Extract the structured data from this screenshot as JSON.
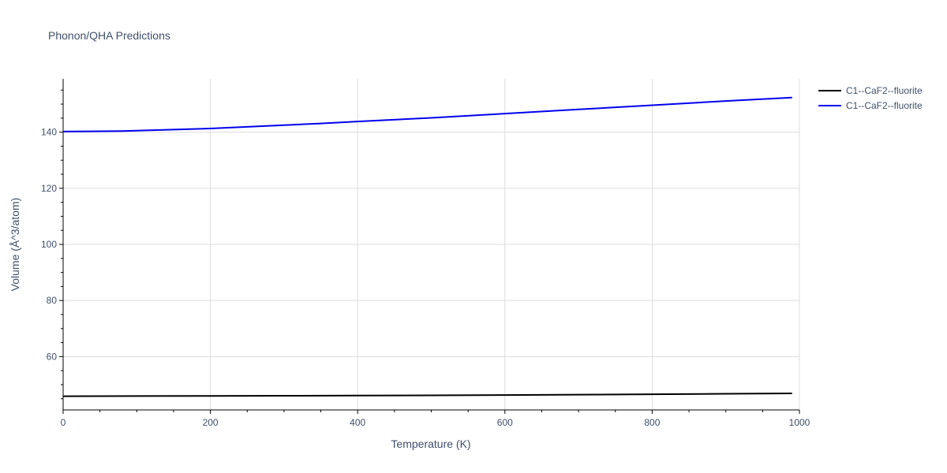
{
  "chart_data": {
    "type": "line",
    "title": "Phonon/QHA Predictions",
    "xlabel": "Temperature (K)",
    "ylabel": "Volume (Å^3/atom)",
    "xlim": [
      0,
      1000
    ],
    "ylim": [
      41,
      159
    ],
    "x_ticks": [
      0,
      200,
      400,
      600,
      800,
      1000
    ],
    "y_ticks": [
      60,
      80,
      100,
      120,
      140
    ],
    "grid": true,
    "legend_position": "top-right",
    "series": [
      {
        "name": "C1--CaF2--fluorite",
        "color": "#000000",
        "x": [
          0,
          100,
          200,
          300,
          400,
          500,
          600,
          700,
          800,
          900,
          990
        ],
        "y": [
          45.9,
          45.95,
          46.0,
          46.05,
          46.1,
          46.2,
          46.3,
          46.45,
          46.6,
          46.75,
          46.9
        ]
      },
      {
        "name": "C1--CaF2--fluorite",
        "color": "#0000ee",
        "x": [
          0,
          80,
          150,
          200,
          250,
          300,
          350,
          400,
          500,
          600,
          700,
          800,
          900,
          990
        ],
        "y": [
          140.2,
          140.4,
          140.9,
          141.3,
          141.9,
          142.5,
          143.1,
          143.8,
          145.1,
          146.6,
          148.1,
          149.6,
          151.1,
          152.3
        ]
      }
    ]
  }
}
